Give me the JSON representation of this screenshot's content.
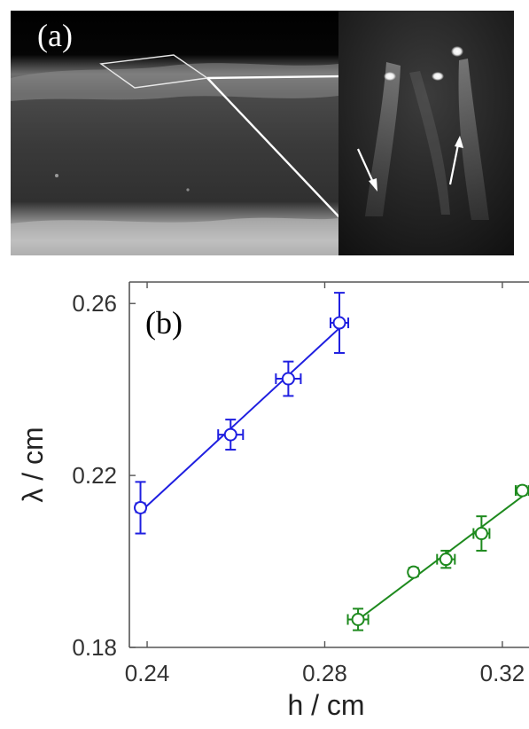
{
  "panel_a": {
    "label": "(a)"
  },
  "colors": {
    "series_blue": "#1f1fe0",
    "series_green": "#1e8a1e"
  },
  "chart_data": {
    "type": "scatter",
    "panel_label": "(b)",
    "xlabel": "h / cm",
    "ylabel": "λ / cm",
    "xlim": [
      0.236,
      0.326
    ],
    "ylim": [
      0.18,
      0.265
    ],
    "x_ticks": [
      "0.24",
      "0.28",
      "0.32"
    ],
    "y_ticks": [
      "0.18",
      "0.22",
      "0.26"
    ],
    "grid": false,
    "series": [
      {
        "color": "#1f1fe0",
        "x": [
          0.2385,
          0.2588,
          0.2718,
          0.2833
        ],
        "y": [
          0.2125,
          0.2295,
          0.2425,
          0.2555
        ],
        "xerr": [
          0.001,
          0.0028,
          0.0028,
          0.002
        ],
        "yerr": [
          0.006,
          0.0035,
          0.004,
          0.007
        ]
      },
      {
        "color": "#1e8a1e",
        "x": [
          0.2875,
          0.3,
          0.3073,
          0.3153,
          0.3245
        ],
        "y": [
          0.1865,
          0.1975,
          0.2005,
          0.2065,
          0.2165
        ],
        "xerr": [
          0.0023,
          0.0008,
          0.002,
          0.0018,
          0.0015
        ],
        "yerr": [
          0.0025,
          0.001,
          0.002,
          0.004,
          0.001
        ]
      }
    ]
  }
}
